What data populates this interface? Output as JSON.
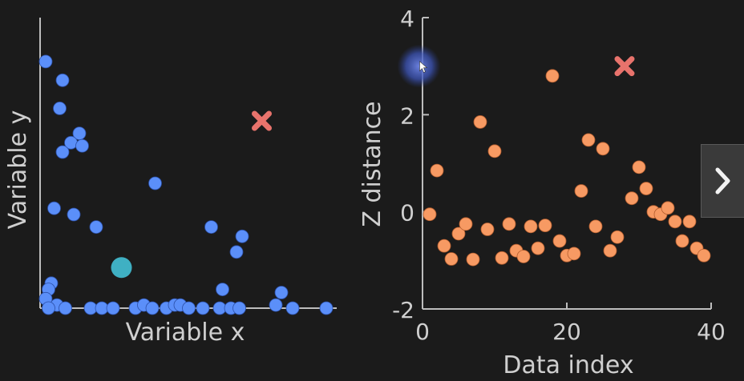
{
  "chart_data": [
    {
      "type": "scatter",
      "title": "",
      "xlabel": "Variable x",
      "ylabel": "Variable y",
      "colors": {
        "points": "#5b8ff9",
        "centroid": "#3fb0c3",
        "outlier": "#e8736c"
      },
      "points": [
        [
          0.2,
          7.9
        ],
        [
          0.8,
          7.3
        ],
        [
          0.7,
          6.4
        ],
        [
          1.4,
          5.6
        ],
        [
          1.1,
          5.3
        ],
        [
          1.5,
          5.2
        ],
        [
          0.8,
          5.0
        ],
        [
          0.5,
          3.2
        ],
        [
          1.2,
          3.0
        ],
        [
          0.4,
          0.8
        ],
        [
          0.3,
          0.6
        ],
        [
          0.2,
          0.3
        ],
        [
          0.6,
          0.1
        ],
        [
          0.9,
          0.0
        ],
        [
          0.3,
          0.0
        ],
        [
          1.8,
          0.0
        ],
        [
          2.2,
          0.0
        ],
        [
          2.6,
          0.0
        ],
        [
          3.4,
          0.0
        ],
        [
          3.7,
          0.1
        ],
        [
          4.0,
          0.0
        ],
        [
          4.5,
          0.0
        ],
        [
          4.8,
          0.1
        ],
        [
          5.0,
          0.1
        ],
        [
          5.3,
          0.0
        ],
        [
          5.8,
          0.0
        ],
        [
          6.4,
          0.0
        ],
        [
          6.8,
          0.0
        ],
        [
          7.1,
          0.0
        ],
        [
          2.0,
          2.6
        ],
        [
          4.1,
          4.0
        ],
        [
          6.1,
          2.6
        ],
        [
          6.5,
          0.6
        ],
        [
          7.0,
          1.8
        ],
        [
          7.2,
          2.3
        ],
        [
          8.4,
          0.1
        ],
        [
          8.6,
          0.5
        ],
        [
          9.0,
          0.0
        ],
        [
          10.2,
          0.0
        ]
      ],
      "centroid": [
        2.9,
        1.3
      ],
      "outlier": [
        7.9,
        6.0
      ]
    },
    {
      "type": "scatter",
      "title": "",
      "xlabel": "Data index",
      "ylabel": "Z distance",
      "xlim": [
        0,
        40
      ],
      "ylim": [
        -2,
        4
      ],
      "xticks": [
        "0",
        "20",
        "40"
      ],
      "yticks": [
        "-2",
        "0",
        "2",
        "4"
      ],
      "colors": {
        "points": "#f79a63",
        "outlier": "#e8736c"
      },
      "values": [
        [
          1,
          -0.05
        ],
        [
          2,
          0.85
        ],
        [
          3,
          -0.7
        ],
        [
          4,
          -0.97
        ],
        [
          5,
          -0.45
        ],
        [
          6,
          -0.25
        ],
        [
          7,
          -0.98
        ],
        [
          8,
          1.85
        ],
        [
          9,
          -0.36
        ],
        [
          10,
          1.25
        ],
        [
          11,
          -0.95
        ],
        [
          12,
          -0.25
        ],
        [
          13,
          -0.8
        ],
        [
          14,
          -0.92
        ],
        [
          15,
          -0.3
        ],
        [
          16,
          -0.75
        ],
        [
          17,
          -0.28
        ],
        [
          18,
          2.8
        ],
        [
          19,
          -0.6
        ],
        [
          20,
          -0.9
        ],
        [
          21,
          -0.86
        ],
        [
          22,
          0.43
        ],
        [
          23,
          1.48
        ],
        [
          24,
          -0.3
        ],
        [
          25,
          1.3
        ],
        [
          26,
          -0.8
        ],
        [
          27,
          -0.52
        ],
        [
          29,
          0.28
        ],
        [
          30,
          0.92
        ],
        [
          31,
          0.48
        ],
        [
          32,
          0.0
        ],
        [
          33,
          -0.05
        ],
        [
          34,
          0.08
        ],
        [
          35,
          -0.2
        ],
        [
          36,
          -0.6
        ],
        [
          37,
          -0.2
        ],
        [
          38,
          -0.75
        ],
        [
          39,
          -0.9
        ]
      ],
      "outlier": [
        28,
        3.0
      ],
      "cursor_highlight": [
        -0.5,
        3.0
      ]
    }
  ],
  "ui": {
    "next_icon": "chevron-right-icon"
  }
}
